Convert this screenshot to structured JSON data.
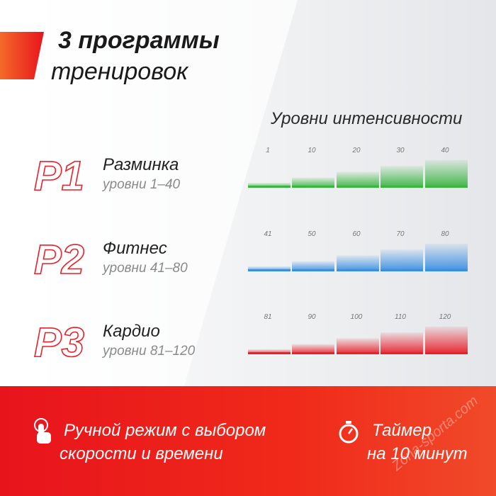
{
  "title": {
    "line1": "3 программы",
    "line2": "тренировок"
  },
  "levels_heading": "Уровни интенсивности",
  "programs": [
    {
      "code": "P1",
      "name": "Разминка",
      "range": "уровни 1–40",
      "color": "#3cb543",
      "levels": [
        1,
        10,
        20,
        30,
        40
      ]
    },
    {
      "code": "P2",
      "name": "Фитнес",
      "range": "уровни 41–80",
      "color": "#3a8fe2",
      "levels": [
        41,
        50,
        60,
        70,
        80
      ]
    },
    {
      "code": "P3",
      "name": "Кардио",
      "range": "уровни 81–120",
      "color": "#e8212b",
      "levels": [
        81,
        90,
        100,
        110,
        120
      ]
    }
  ],
  "footer": {
    "manual": [
      "Ручной режим с выбором",
      "скорости и времени"
    ],
    "timer": [
      "Таймер",
      "на 10 минут"
    ]
  },
  "watermark": "Zona-sporta.com"
}
